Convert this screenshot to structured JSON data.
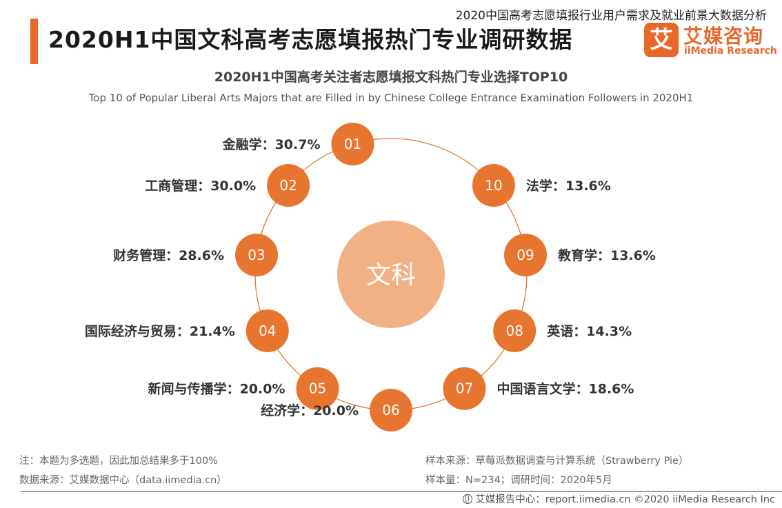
{
  "report_title": "2020中国高考志愿填报行业用户需求及就业前景大数据分析",
  "header": {
    "title": "2020H1中国文科高考志愿填报热门专业调研数据",
    "accent_color": "#e8682a"
  },
  "logo": {
    "mark": "艾",
    "cn": "艾媒咨询",
    "en": "iiMedia Research"
  },
  "chart_data": {
    "type": "other",
    "title": "2020H1中国高考关注者志愿填报文科热门专业选择TOP10",
    "subtitle": "Top 10 of Popular Liberal Arts Majors that are Filled in by Chinese College Entrance Examination Followers in 2020H1",
    "center_label": "文科",
    "unit": "%",
    "categories": [
      "金融学",
      "工商管理",
      "财务管理",
      "国际经济与贸易",
      "新闻与传播学",
      "经济学",
      "中国语言文学",
      "英语",
      "教育学",
      "法学"
    ],
    "values": [
      30.7,
      30.0,
      28.6,
      21.4,
      20.0,
      20.0,
      18.6,
      14.3,
      13.6,
      13.6
    ],
    "ranks": [
      "01",
      "02",
      "03",
      "04",
      "05",
      "06",
      "07",
      "08",
      "09",
      "10"
    ],
    "labels": [
      "金融学：30.7%",
      "工商管理：30.0%",
      "财务管理：28.6%",
      "国际经济与贸易：21.4%",
      "新闻与传播学：20.0%",
      "经济学：20.0%",
      "中国语言文学：18.6%",
      "英语：14.3%",
      "教育学：13.6%",
      "法学：13.6%"
    ],
    "colors": {
      "node": "#e8752f",
      "ring": "#e8752f",
      "center": "#f2b085",
      "label": "#333333"
    }
  },
  "notes": {
    "note": "注：本题为多选题，因此加总结果多于100%",
    "data_source": "数据来源：艾媒数据中心（data.iimedia.cn）",
    "sample_source": "样本来源：草莓派数据调查与计算系统（Strawberry Pie）",
    "sample_size": "样本量：N=234；调研时间：2020年5月"
  },
  "footer": {
    "text": "艾媒报告中心：report.iimedia.cn  ©2020  iiMedia Research  Inc"
  }
}
